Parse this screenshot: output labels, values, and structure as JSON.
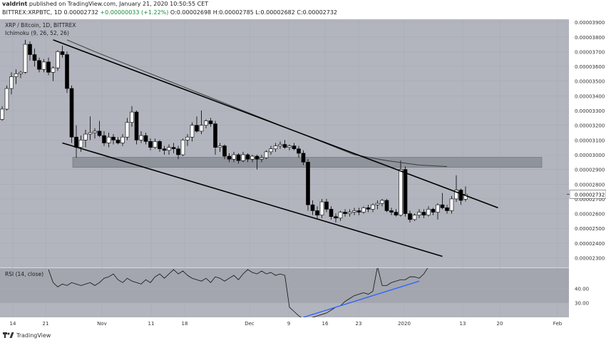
{
  "header": {
    "author": "valdrint",
    "published_text": "published on TradingView.com, January 21, 2020 10:50:55 CET",
    "symbol_line": "BITTREX:XRPBTC, 1D",
    "close": "0.00002732",
    "change": "+0.00000033 (+1.22%)",
    "o": "0.00002698",
    "h": "0.00002785",
    "l": "0.00002682",
    "c": "0.00002732"
  },
  "brand": {
    "text": "TradingView",
    "icon": "tradingview-logo-icon"
  },
  "colors": {
    "background": "#b2b5be",
    "grid": "#a7aab3",
    "candle_up": "#ffffff",
    "candle_down": "#000000",
    "support_zone": "#8f939b",
    "ma_line": "#3c3c3c",
    "rsi_trend": "#2962ff"
  },
  "chart_data": [
    {
      "type": "candlestick",
      "title": "XRP / Bitcoin, 1D, BITTREX",
      "indicator_label": "Ichimoku (9, 26, 52, 26)",
      "ylim": [
        2.23e-05,
        3.92e-05
      ],
      "y_ticks": [
        "0.00002300",
        "0.00002400",
        "0.00002500",
        "0.00002600",
        "0.00002700",
        "0.00002800",
        "0.00002900",
        "0.00003000",
        "0.00003100",
        "0.00003200",
        "0.00003300",
        "0.00003400",
        "0.00003500",
        "0.00003600",
        "0.00003700",
        "0.00003800",
        "0.00003900"
      ],
      "x_ticks": [
        "14",
        "21",
        "Nov",
        "11",
        "18",
        "Dec",
        "9",
        "16",
        "23",
        "2020",
        "13",
        "20",
        "Feb"
      ],
      "last_price_label": "0.00002732",
      "candles": [
        [
          3.24e-05,
          3.33e-05,
          3.23e-05,
          3.31e-05
        ],
        [
          3.31e-05,
          3.47e-05,
          3.3e-05,
          3.45e-05
        ],
        [
          3.45e-05,
          3.56e-05,
          3.41e-05,
          3.53e-05
        ],
        [
          3.53e-05,
          3.58e-05,
          3.48e-05,
          3.55e-05
        ],
        [
          3.55e-05,
          3.57e-05,
          3.52e-05,
          3.56e-05
        ],
        [
          3.56e-05,
          3.78e-05,
          3.55e-05,
          3.75e-05
        ],
        [
          3.75e-05,
          3.77e-05,
          3.64e-05,
          3.68e-05
        ],
        [
          3.68e-05,
          3.72e-05,
          3.6e-05,
          3.64e-05
        ],
        [
          3.64e-05,
          3.66e-05,
          3.56e-05,
          3.58e-05
        ],
        [
          3.58e-05,
          3.65e-05,
          3.56e-05,
          3.63e-05
        ],
        [
          3.63e-05,
          3.66e-05,
          3.54e-05,
          3.56e-05
        ],
        [
          3.56e-05,
          3.6e-05,
          3.5e-05,
          3.59e-05
        ],
        [
          3.59e-05,
          3.71e-05,
          3.57e-05,
          3.7e-05
        ],
        [
          3.7e-05,
          3.74e-05,
          3.66e-05,
          3.68e-05
        ],
        [
          3.68e-05,
          3.7e-05,
          3.42e-05,
          3.45e-05
        ],
        [
          3.45e-05,
          3.47e-05,
          3.08e-05,
          3.12e-05
        ],
        [
          3.12e-05,
          3.2e-05,
          2.98e-05,
          3.05e-05
        ],
        [
          3.05e-05,
          3.13e-05,
          3.02e-05,
          3.1e-05
        ],
        [
          3.1e-05,
          3.17e-05,
          3.05e-05,
          3.14e-05
        ],
        [
          3.14e-05,
          3.26e-05,
          3.1e-05,
          3.15e-05
        ],
        [
          3.15e-05,
          3.18e-05,
          3.11e-05,
          3.16e-05
        ],
        [
          3.16e-05,
          3.23e-05,
          3.12e-05,
          3.13e-05
        ],
        [
          3.13e-05,
          3.16e-05,
          3.06e-05,
          3.08e-05
        ],
        [
          3.08e-05,
          3.15e-05,
          3.05e-05,
          3.12e-05
        ],
        [
          3.12e-05,
          3.14e-05,
          3.07e-05,
          3.1e-05
        ],
        [
          3.1e-05,
          3.12e-05,
          3.07e-05,
          3.08e-05
        ],
        [
          3.08e-05,
          3.14e-05,
          3.06e-05,
          3.12e-05
        ],
        [
          3.12e-05,
          3.25e-05,
          3.1e-05,
          3.22e-05
        ],
        [
          3.22e-05,
          3.33e-05,
          3.19e-05,
          3.29e-05
        ],
        [
          3.29e-05,
          3.3e-05,
          3.07e-05,
          3.1e-05
        ],
        [
          3.1e-05,
          3.16e-05,
          3.08e-05,
          3.13e-05
        ],
        [
          3.13e-05,
          3.15e-05,
          3.07e-05,
          3.09e-05
        ],
        [
          3.09e-05,
          3.11e-05,
          3.03e-05,
          3.05e-05
        ],
        [
          3.05e-05,
          3.11e-05,
          3.04e-05,
          3.09e-05
        ],
        [
          3.09e-05,
          3.1e-05,
          3.02e-05,
          3.04e-05
        ],
        [
          3.04e-05,
          3.06e-05,
          3e-05,
          3.03e-05
        ],
        [
          3.03e-05,
          3.07e-05,
          3e-05,
          3.05e-05
        ],
        [
          3.05e-05,
          3.08e-05,
          3.01e-05,
          3.04e-05
        ],
        [
          3.04e-05,
          3.06e-05,
          2.97e-05,
          3e-05
        ],
        [
          3e-05,
          3.11e-05,
          2.99e-05,
          3.1e-05
        ],
        [
          3.1e-05,
          3.14e-05,
          3.06e-05,
          3.12e-05
        ],
        [
          3.12e-05,
          3.22e-05,
          3.09e-05,
          3.2e-05
        ],
        [
          3.2e-05,
          3.26e-05,
          3.15e-05,
          3.16e-05
        ],
        [
          3.16e-05,
          3.3e-05,
          3.14e-05,
          3.2e-05
        ],
        [
          3.2e-05,
          3.24e-05,
          3.18e-05,
          3.23e-05
        ],
        [
          3.23e-05,
          3.25e-05,
          3.19e-05,
          3.21e-05
        ],
        [
          3.21e-05,
          3.23e-05,
          3e-05,
          3.05e-05
        ],
        [
          3.05e-05,
          3.08e-05,
          3.02e-05,
          3.06e-05
        ],
        [
          3.06e-05,
          3.07e-05,
          2.97e-05,
          2.99e-05
        ],
        [
          2.99e-05,
          3.01e-05,
          2.95e-05,
          2.97e-05
        ],
        [
          2.97e-05,
          3.02e-05,
          2.95e-05,
          3e-05
        ],
        [
          3e-05,
          3.01e-05,
          2.94e-05,
          2.96e-05
        ],
        [
          2.96e-05,
          3.02e-05,
          2.95e-05,
          3e-05
        ],
        [
          3e-05,
          3.01e-05,
          2.95e-05,
          2.97e-05
        ],
        [
          2.97e-05,
          3e-05,
          2.95e-05,
          2.99e-05
        ],
        [
          2.99e-05,
          3e-05,
          2.9e-05,
          2.97e-05
        ],
        [
          2.97e-05,
          3e-05,
          2.95e-05,
          2.98e-05
        ],
        [
          2.98e-05,
          3.03e-05,
          2.97e-05,
          3.02e-05
        ],
        [
          3.02e-05,
          3.06e-05,
          3e-05,
          3.04e-05
        ],
        [
          3.04e-05,
          3.08e-05,
          3.02e-05,
          3.06e-05
        ],
        [
          3.06e-05,
          3.09e-05,
          3.04e-05,
          3.07e-05
        ],
        [
          3.07e-05,
          3.1e-05,
          3.04e-05,
          3.05e-05
        ],
        [
          3.05e-05,
          3.07e-05,
          3.03e-05,
          3.06e-05
        ],
        [
          3.06e-05,
          3.08e-05,
          3.03e-05,
          3.04e-05
        ],
        [
          3.04e-05,
          3.06e-05,
          2.98e-05,
          3.01e-05
        ],
        [
          3.01e-05,
          3.03e-05,
          2.93e-05,
          2.95e-05
        ],
        [
          2.95e-05,
          2.97e-05,
          2.62e-05,
          2.66e-05
        ],
        [
          2.66e-05,
          2.69e-05,
          2.59e-05,
          2.62e-05
        ],
        [
          2.62e-05,
          2.65e-05,
          2.56e-05,
          2.59e-05
        ],
        [
          2.59e-05,
          2.7e-05,
          2.57e-05,
          2.68e-05
        ],
        [
          2.68e-05,
          2.7e-05,
          2.61e-05,
          2.63e-05
        ],
        [
          2.63e-05,
          2.65e-05,
          2.56e-05,
          2.58e-05
        ],
        [
          2.58e-05,
          2.6e-05,
          2.54e-05,
          2.57e-05
        ],
        [
          2.57e-05,
          2.62e-05,
          2.55e-05,
          2.61e-05
        ],
        [
          2.61e-05,
          2.63e-05,
          2.58e-05,
          2.6e-05
        ],
        [
          2.6e-05,
          2.63e-05,
          2.58e-05,
          2.61e-05
        ],
        [
          2.61e-05,
          2.64e-05,
          2.59e-05,
          2.62e-05
        ],
        [
          2.62e-05,
          2.64e-05,
          2.59e-05,
          2.61e-05
        ],
        [
          2.61e-05,
          2.65e-05,
          2.6e-05,
          2.64e-05
        ],
        [
          2.64e-05,
          2.66e-05,
          2.61e-05,
          2.63e-05
        ],
        [
          2.63e-05,
          2.67e-05,
          2.61e-05,
          2.66e-05
        ],
        [
          2.66e-05,
          2.69e-05,
          2.63e-05,
          2.67e-05
        ],
        [
          2.67e-05,
          2.7e-05,
          2.65e-05,
          2.69e-05
        ],
        [
          2.69e-05,
          2.7e-05,
          2.61e-05,
          2.62e-05
        ],
        [
          2.62e-05,
          2.64e-05,
          2.59e-05,
          2.61e-05
        ],
        [
          2.61e-05,
          2.63e-05,
          2.58e-05,
          2.59e-05
        ],
        [
          2.59e-05,
          2.96e-05,
          2.58e-05,
          2.9e-05
        ],
        [
          2.9e-05,
          2.92e-05,
          2.58e-05,
          2.6e-05
        ],
        [
          2.6e-05,
          2.62e-05,
          2.54e-05,
          2.56e-05
        ],
        [
          2.56e-05,
          2.6e-05,
          2.55e-05,
          2.59e-05
        ],
        [
          2.59e-05,
          2.63e-05,
          2.57e-05,
          2.61e-05
        ],
        [
          2.61e-05,
          2.63e-05,
          2.57e-05,
          2.59e-05
        ],
        [
          2.59e-05,
          2.65e-05,
          2.58e-05,
          2.63e-05
        ],
        [
          2.63e-05,
          2.64e-05,
          2.59e-05,
          2.61e-05
        ],
        [
          2.61e-05,
          2.67e-05,
          2.56e-05,
          2.66e-05
        ],
        [
          2.66e-05,
          2.74e-05,
          2.63e-05,
          2.64e-05
        ],
        [
          2.64e-05,
          2.66e-05,
          2.6e-05,
          2.62e-05
        ],
        [
          2.62e-05,
          2.72e-05,
          2.6e-05,
          2.7e-05
        ],
        [
          2.7e-05,
          2.86e-05,
          2.68e-05,
          2.76e-05
        ],
        [
          2.76e-05,
          2.77e-05,
          2.66e-05,
          2.69e-05
        ],
        [
          2.698e-05,
          2.785e-05,
          2.682e-05,
          2.732e-05
        ]
      ],
      "moving_average": [
        [
          14,
          3.78e-05
        ],
        [
          20,
          3.7e-05
        ],
        [
          28,
          3.6e-05
        ],
        [
          36,
          3.5e-05
        ],
        [
          44,
          3.4e-05
        ],
        [
          52,
          3.3e-05
        ],
        [
          60,
          3.2e-05
        ],
        [
          68,
          3.1e-05
        ],
        [
          76,
          3e-05
        ],
        [
          83,
          2.96e-05
        ],
        [
          90,
          2.93e-05
        ],
        [
          96,
          2.92e-05
        ]
      ],
      "trendline_upper": [
        [
          11,
          3.78e-05
        ],
        [
          107,
          2.64e-05
        ]
      ],
      "trendline_lower": [
        [
          13,
          3.08e-05
        ],
        [
          95,
          2.31e-05
        ]
      ],
      "support_zone": [
        2.914e-05,
        2.983e-05
      ]
    },
    {
      "type": "line",
      "title": "RSI (14, close)",
      "ylim": [
        20,
        54
      ],
      "y_ticks": [
        "40.00",
        "30.00"
      ],
      "band": [
        30,
        70
      ],
      "values": [
        [
          10,
          53
        ],
        [
          11,
          44
        ],
        [
          12,
          41
        ],
        [
          13,
          43
        ],
        [
          14,
          42
        ],
        [
          15,
          44
        ],
        [
          16,
          43
        ],
        [
          17,
          42
        ],
        [
          18,
          43
        ],
        [
          19,
          44
        ],
        [
          20,
          42
        ],
        [
          21,
          44
        ],
        [
          22,
          47
        ],
        [
          23,
          48
        ],
        [
          24,
          50
        ],
        [
          25,
          46
        ],
        [
          26,
          44
        ],
        [
          27,
          47
        ],
        [
          28,
          45
        ],
        [
          29,
          44
        ],
        [
          30,
          43
        ],
        [
          31,
          46
        ],
        [
          32,
          44
        ],
        [
          33,
          48
        ],
        [
          34,
          50
        ],
        [
          35,
          47
        ],
        [
          36,
          50
        ],
        [
          37,
          53
        ],
        [
          38,
          50
        ],
        [
          39,
          52
        ],
        [
          40,
          49
        ],
        [
          41,
          47
        ],
        [
          42,
          46
        ],
        [
          43,
          45
        ],
        [
          44,
          47
        ],
        [
          45,
          44
        ],
        [
          46,
          48
        ],
        [
          47,
          47
        ],
        [
          48,
          45
        ],
        [
          49,
          47
        ],
        [
          50,
          49
        ],
        [
          51,
          46
        ],
        [
          52,
          50
        ],
        [
          53,
          53
        ],
        [
          54,
          51
        ],
        [
          55,
          50
        ],
        [
          56,
          52
        ],
        [
          57,
          50
        ],
        [
          58,
          51
        ],
        [
          59,
          49
        ],
        [
          60,
          50
        ],
        [
          61,
          49
        ],
        [
          62,
          27
        ],
        [
          63,
          24
        ],
        [
          64,
          21
        ],
        [
          65,
          19
        ],
        [
          66,
          18
        ],
        [
          67,
          20
        ],
        [
          68,
          21
        ],
        [
          69,
          22
        ],
        [
          70,
          23
        ],
        [
          71,
          25
        ],
        [
          72,
          27
        ],
        [
          73,
          28
        ],
        [
          74,
          31
        ],
        [
          75,
          33
        ],
        [
          76,
          35
        ],
        [
          77,
          36
        ],
        [
          78,
          37
        ],
        [
          79,
          36
        ],
        [
          80,
          38
        ],
        [
          81,
          55
        ],
        [
          82,
          42
        ],
        [
          83,
          42
        ],
        [
          84,
          44
        ],
        [
          85,
          45
        ],
        [
          86,
          46
        ],
        [
          87,
          46
        ],
        [
          88,
          48
        ],
        [
          89,
          48
        ],
        [
          90,
          47
        ],
        [
          91,
          50
        ],
        [
          92,
          55
        ]
      ],
      "trendline": [
        [
          65,
          20
        ],
        [
          90,
          45
        ]
      ]
    }
  ]
}
